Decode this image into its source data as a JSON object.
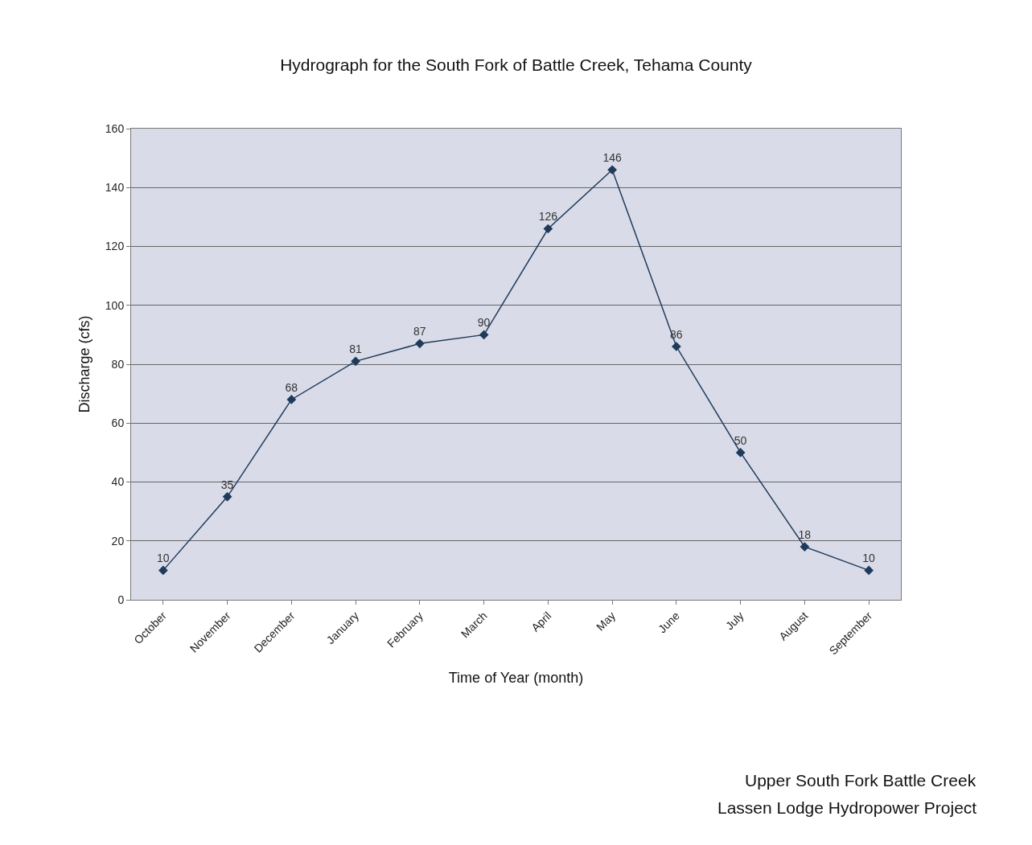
{
  "chart_data": {
    "type": "line",
    "title": "Hydrograph for the South Fork of Battle Creek, Tehama County",
    "xlabel": "Time of Year (month)",
    "ylabel": "Discharge (cfs)",
    "categories": [
      "October",
      "November",
      "December",
      "January",
      "February",
      "March",
      "April",
      "May",
      "June",
      "July",
      "August",
      "September"
    ],
    "series": [
      {
        "color": "#1f3a5a",
        "values": [
          10,
          35,
          68,
          81,
          87,
          90,
          126,
          146,
          86,
          50,
          18,
          10
        ]
      }
    ],
    "ylim": [
      0,
      160
    ],
    "yticks": [
      0,
      20,
      40,
      60,
      80,
      100,
      120,
      140,
      160
    ],
    "grid": "y",
    "marker": "diamond",
    "line_style": "solid",
    "data_labels": true,
    "annotations": [
      "Upper South Fork Battle Creek",
      "Lassen Lodge Hydropower Project"
    ]
  }
}
